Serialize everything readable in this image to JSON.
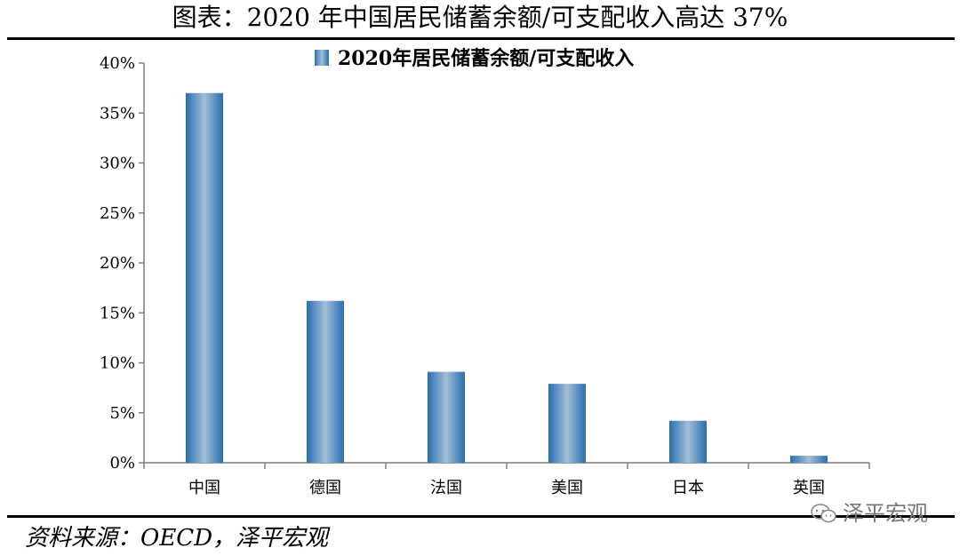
{
  "page_title": "图表：2020 年中国居民储蓄余额/可支配收入高达 37%",
  "source": "资料来源：OECD，泽平宏观",
  "watermark": "泽平宏观",
  "chart_data": {
    "type": "bar",
    "categories": [
      "中国",
      "德国",
      "法国",
      "美国",
      "日本",
      "英国"
    ],
    "series": [
      {
        "name": "2020年居民储蓄余额/可支配收入",
        "values": [
          37,
          16.2,
          9.1,
          7.9,
          4.2,
          0.7
        ]
      }
    ],
    "yticks": [
      "0%",
      "5%",
      "10%",
      "15%",
      "20%",
      "25%",
      "30%",
      "35%",
      "40%"
    ],
    "ylim": [
      0,
      40
    ],
    "grid": false,
    "legend_position": "top"
  },
  "colors": {
    "bar_edge": "#2a6fb4",
    "bar_center": "#a3bdd6",
    "axis": "#7f7f7f"
  }
}
